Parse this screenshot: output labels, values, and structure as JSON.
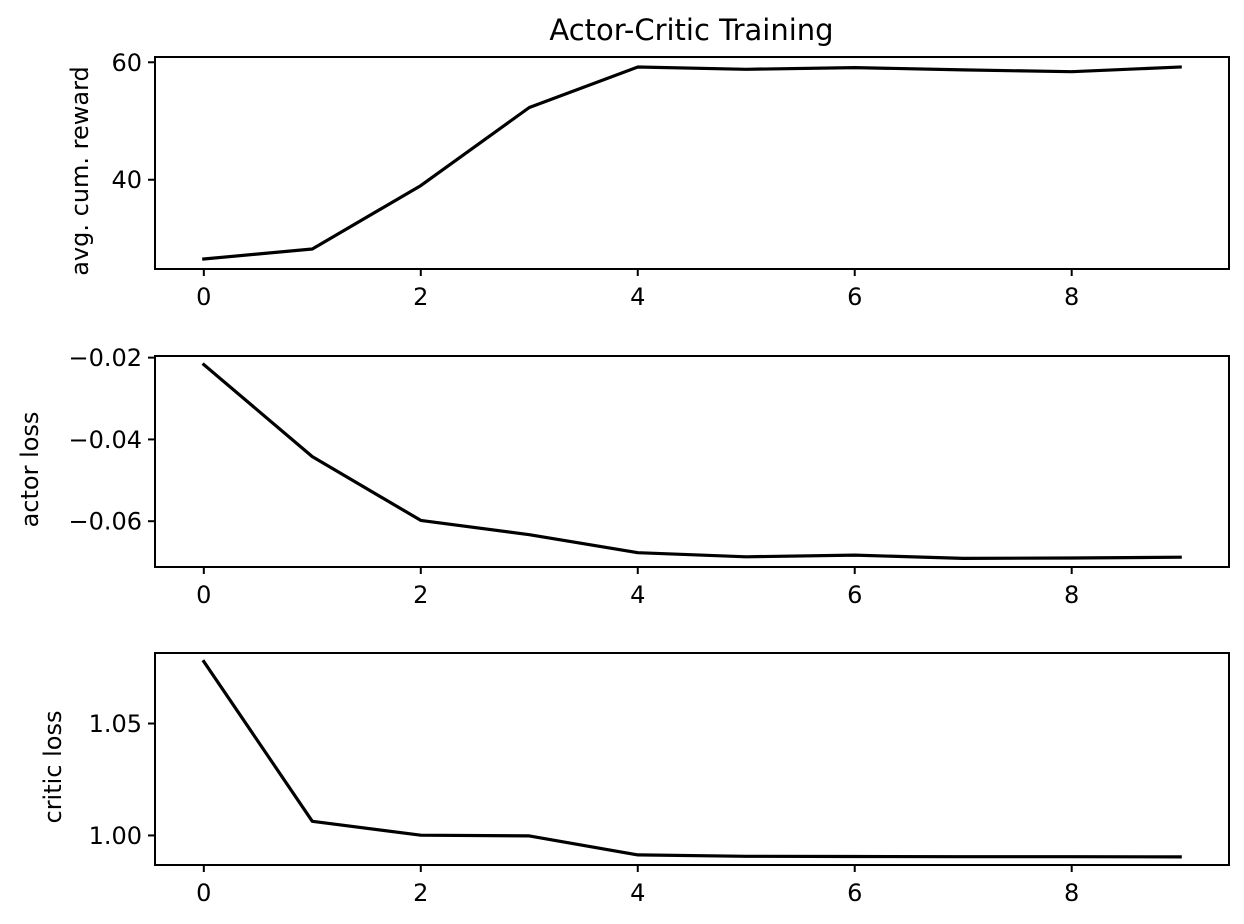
{
  "figure": {
    "title": "Actor-Critic Training"
  },
  "colors": {
    "line": "#000000",
    "frame": "#000000",
    "background": "#ffffff"
  },
  "chart_data": [
    {
      "type": "line",
      "title": "Actor-Critic Training",
      "xlabel": "",
      "ylabel": "avg. cum. reward",
      "x": [
        0,
        1,
        2,
        3,
        4,
        5,
        6,
        7,
        8,
        9
      ],
      "y": [
        26.5,
        28.2,
        39.0,
        52.3,
        59.2,
        58.8,
        59.1,
        58.7,
        58.4,
        59.2
      ],
      "xlim": [
        -0.45,
        9.45
      ],
      "ylim": [
        24.8,
        60.9
      ],
      "xticks": [
        0,
        2,
        4,
        6,
        8
      ],
      "yticks": [
        40,
        60
      ],
      "ytick_labels": [
        "40",
        "60"
      ],
      "grid": false,
      "legend": false
    },
    {
      "type": "line",
      "title": "",
      "xlabel": "",
      "ylabel": "actor loss",
      "x": [
        0,
        1,
        2,
        3,
        4,
        5,
        6,
        7,
        8,
        9
      ],
      "y": [
        -0.0217,
        -0.0442,
        -0.0598,
        -0.0633,
        -0.0677,
        -0.0687,
        -0.0683,
        -0.0691,
        -0.069,
        -0.0688
      ],
      "xlim": [
        -0.45,
        9.45
      ],
      "ylim": [
        -0.0712,
        -0.0196
      ],
      "xticks": [
        0,
        2,
        4,
        6,
        8
      ],
      "yticks": [
        -0.06,
        -0.04,
        -0.02
      ],
      "ytick_labels": [
        "−0.06",
        "−0.04",
        "−0.02"
      ],
      "grid": false,
      "legend": false
    },
    {
      "type": "line",
      "title": "",
      "xlabel": "",
      "ylabel": "critic loss",
      "x": [
        0,
        1,
        2,
        3,
        4,
        5,
        6,
        7,
        8,
        9
      ],
      "y": [
        1.0777,
        1.0063,
        1.0001,
        0.9998,
        0.9913,
        0.9907,
        0.9906,
        0.9905,
        0.9905,
        0.9904
      ],
      "xlim": [
        -0.45,
        9.45
      ],
      "ylim": [
        0.9868,
        1.0815
      ],
      "xticks": [
        0,
        2,
        4,
        6,
        8
      ],
      "yticks": [
        1.0,
        1.05
      ],
      "ytick_labels": [
        "1.00",
        "1.05"
      ],
      "grid": false,
      "legend": false
    }
  ]
}
